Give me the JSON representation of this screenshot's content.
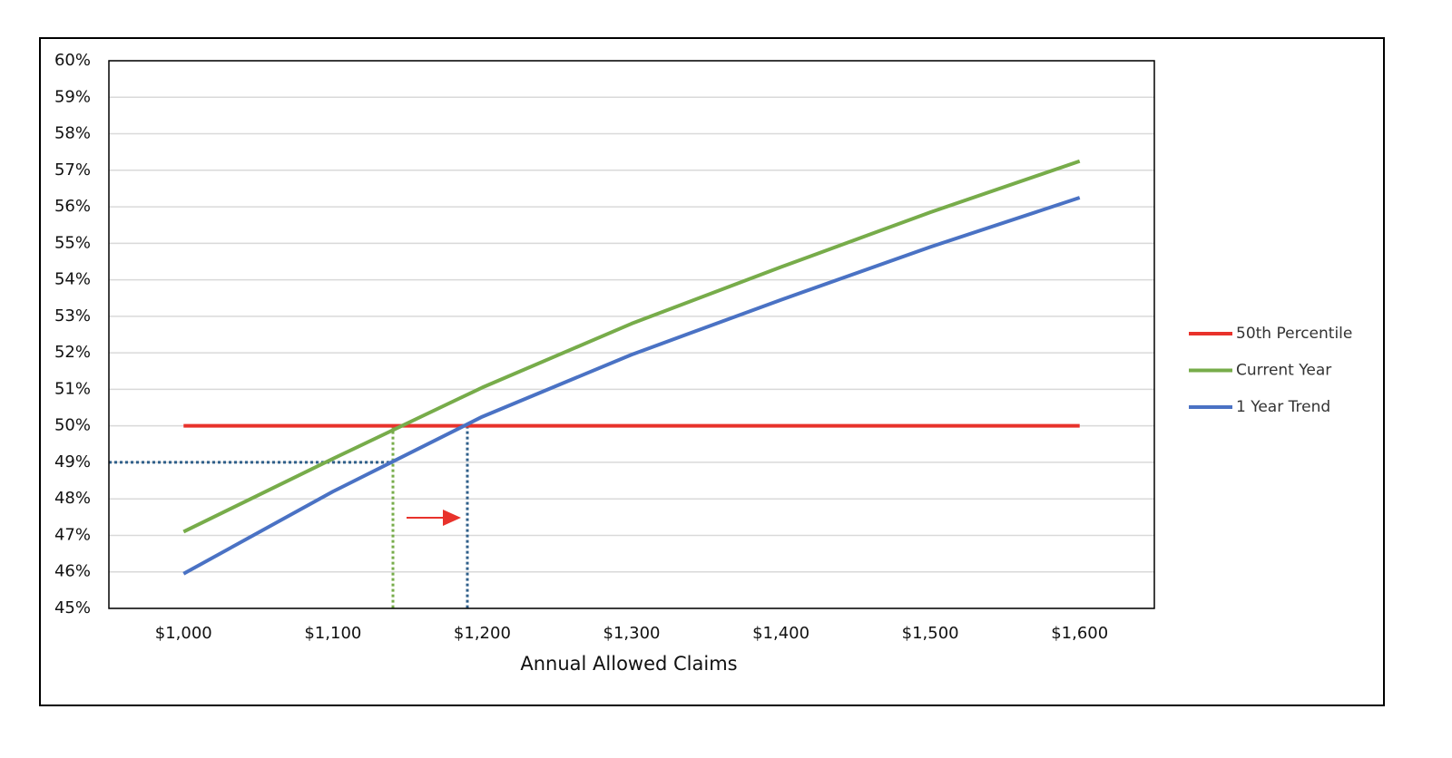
{
  "chart_data": {
    "type": "line",
    "x_label": "Annual Allowed Claims",
    "categories": [
      "$1,000",
      "$1,100",
      "$1,200",
      "$1,300",
      "$1,400",
      "$1,500",
      "$1,600"
    ],
    "series": [
      {
        "name": "50th Percentile",
        "color": "#e8322b",
        "values": [
          50,
          50,
          50,
          50,
          50,
          50,
          50
        ]
      },
      {
        "name": "Current Year",
        "color": "#77ac4a",
        "values": [
          47.1,
          49.1,
          51.05,
          52.8,
          54.35,
          55.85,
          57.25
        ]
      },
      {
        "name": "1 Year Trend",
        "color": "#4a72c4",
        "values": [
          45.95,
          48.2,
          50.25,
          51.95,
          53.45,
          54.9,
          56.25
        ]
      }
    ],
    "ylim": [
      45,
      60
    ],
    "yticks": [
      {
        "value": 45,
        "label": "45%"
      },
      {
        "value": 46,
        "label": "46%"
      },
      {
        "value": 47,
        "label": "47%"
      },
      {
        "value": 48,
        "label": "48%"
      },
      {
        "value": 49,
        "label": "49%"
      },
      {
        "value": 50,
        "label": "50%"
      },
      {
        "value": 51,
        "label": "51%"
      },
      {
        "value": 52,
        "label": "52%"
      },
      {
        "value": 53,
        "label": "53%"
      },
      {
        "value": 54,
        "label": "54%"
      },
      {
        "value": 55,
        "label": "55%"
      },
      {
        "value": 56,
        "label": "56%"
      },
      {
        "value": 57,
        "label": "57%"
      },
      {
        "value": 58,
        "label": "58%"
      },
      {
        "value": 59,
        "label": "59%"
      },
      {
        "value": 60,
        "label": "60%"
      }
    ],
    "grid": true,
    "legend": "right"
  }
}
